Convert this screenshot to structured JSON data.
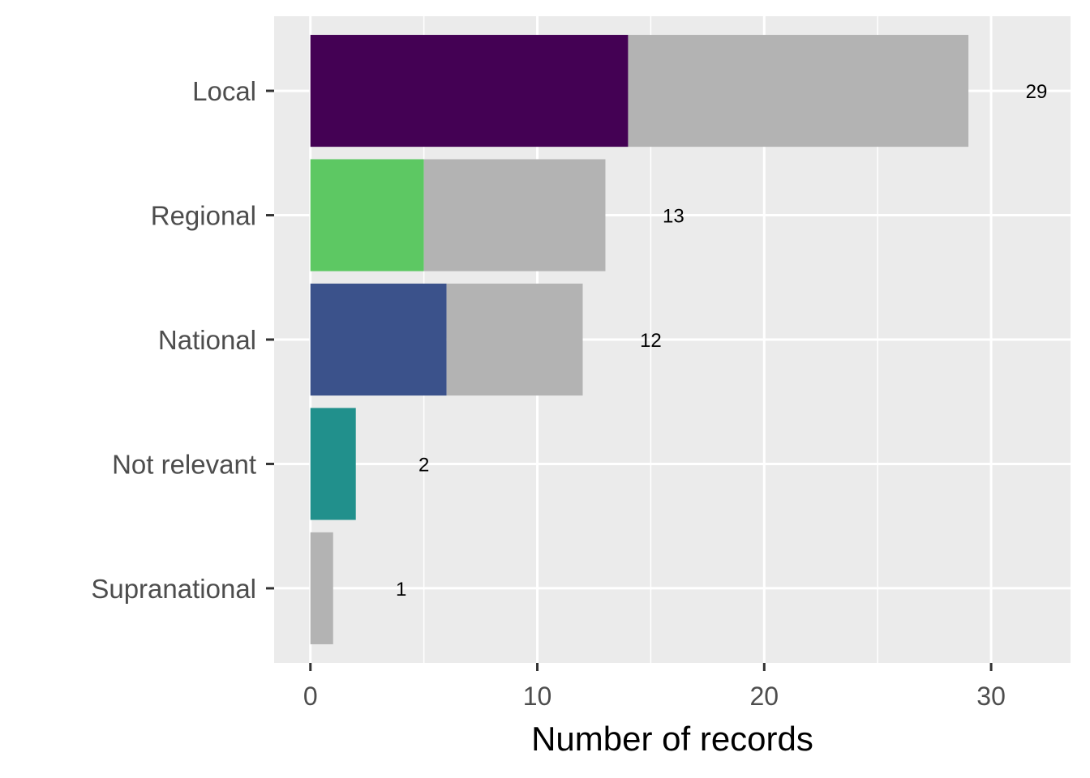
{
  "chart_data": {
    "type": "bar",
    "orientation": "horizontal",
    "stacked": true,
    "categories": [
      "Local",
      "Regional",
      "National",
      "Not relevant",
      "Supranational"
    ],
    "series": [
      {
        "color": "#440154",
        "values": [
          14,
          0,
          0,
          0,
          0
        ]
      },
      {
        "color": "#5DC863",
        "values": [
          0,
          5,
          0,
          0,
          0
        ]
      },
      {
        "color": "#3B528B",
        "values": [
          0,
          0,
          6,
          0,
          0
        ]
      },
      {
        "color": "#21908C",
        "values": [
          0,
          0,
          0,
          2,
          0
        ]
      },
      {
        "color": "#B3B3B3",
        "values": [
          15,
          8,
          6,
          0,
          1
        ]
      }
    ],
    "totals": [
      29,
      13,
      12,
      2,
      1
    ],
    "data_labels": [
      "29",
      "13",
      "12",
      "2",
      "1"
    ],
    "xlabel": "Number of records",
    "ylabel": "",
    "xlim": [
      -1.6,
      33.5
    ],
    "xticks": [
      0,
      10,
      20,
      30
    ],
    "xtick_labels": [
      "0",
      "10",
      "20",
      "30"
    ],
    "grid": true,
    "background": "#EBEBEB"
  }
}
